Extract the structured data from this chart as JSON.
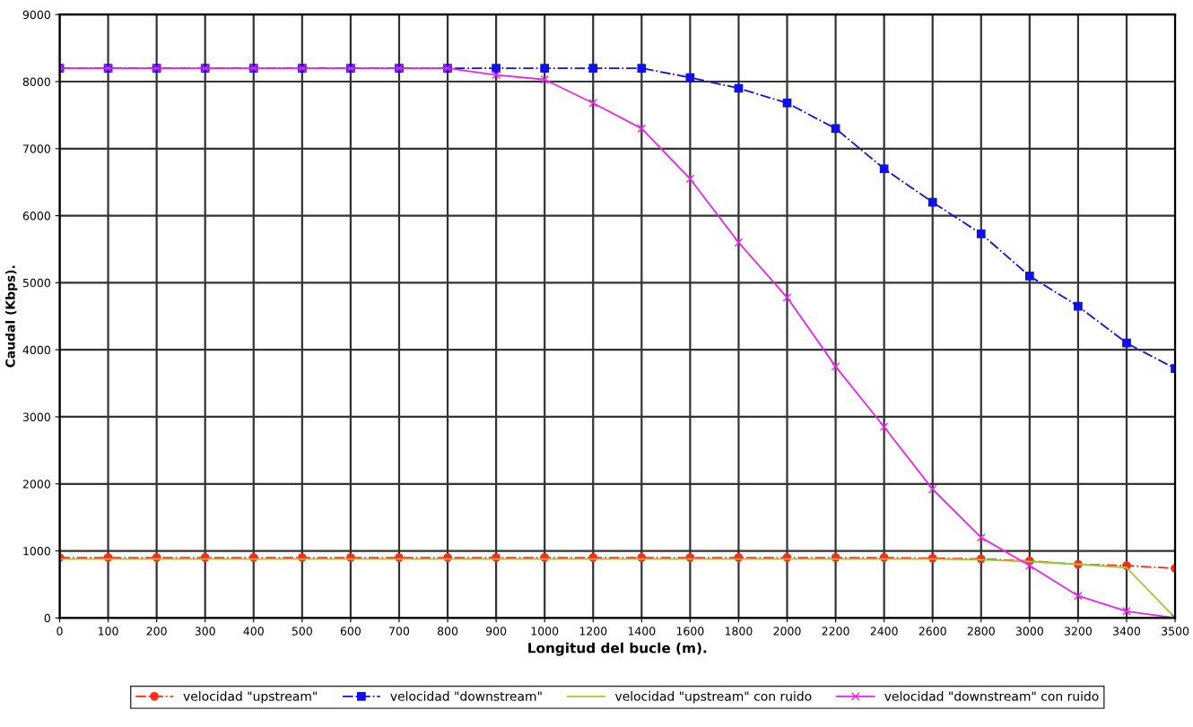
{
  "chart_data": {
    "type": "line",
    "xlabel": "Longitud del bucle (m).",
    "ylabel": "Caudal (Kbps).",
    "categories": [
      "0",
      "100",
      "200",
      "300",
      "400",
      "500",
      "600",
      "700",
      "800",
      "900",
      "1000",
      "1200",
      "1400",
      "1600",
      "1800",
      "2000",
      "2200",
      "2400",
      "2600",
      "2800",
      "3000",
      "3200",
      "3400",
      "3500"
    ],
    "series": [
      {
        "name": "velocidad \"upstream\"",
        "color": "#ff2a1a",
        "marker": "circle",
        "line_style": "dashed",
        "values": [
          900,
          900,
          900,
          900,
          900,
          900,
          900,
          900,
          900,
          900,
          900,
          900,
          900,
          900,
          900,
          900,
          900,
          900,
          890,
          880,
          850,
          800,
          780,
          740
        ]
      },
      {
        "name": "velocidad \"downstream\"",
        "color": "#1010ee",
        "marker": "square",
        "line_style": "dashed",
        "values": [
          8200,
          8200,
          8200,
          8200,
          8200,
          8200,
          8200,
          8200,
          8200,
          8200,
          8200,
          8200,
          8200,
          8060,
          7900,
          7680,
          7300,
          6700,
          6200,
          5730,
          5100,
          4650,
          4100,
          3720
        ]
      },
      {
        "name": "velocidad \"upstream\" con ruido",
        "color": "#9acd32",
        "marker": "none",
        "line_style": "solid",
        "values": [
          880,
          880,
          880,
          880,
          880,
          880,
          880,
          880,
          880,
          880,
          880,
          880,
          880,
          880,
          880,
          880,
          880,
          880,
          880,
          870,
          840,
          800,
          750,
          0
        ]
      },
      {
        "name": "velocidad \"downstream\" con ruido",
        "color": "#ee22ee",
        "marker": "cross",
        "line_style": "solid",
        "values": [
          8200,
          8200,
          8200,
          8200,
          8200,
          8200,
          8200,
          8200,
          8200,
          8100,
          8030,
          7680,
          7300,
          6550,
          5600,
          4780,
          3750,
          2850,
          1920,
          1200,
          780,
          330,
          100,
          0
        ]
      }
    ],
    "ylim": [
      0,
      9000
    ],
    "yticks": [
      0,
      1000,
      2000,
      3000,
      4000,
      5000,
      6000,
      7000,
      8000,
      9000
    ],
    "grid": true,
    "legend": "bottom"
  }
}
